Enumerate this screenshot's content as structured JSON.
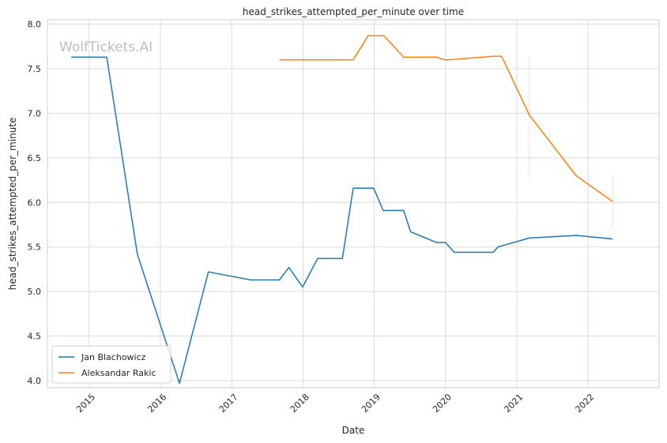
{
  "chart_data": {
    "type": "line",
    "title": "head_strikes_attempted_per_minute over time",
    "xlabel": "Date",
    "ylabel": "head_strikes_attempted_per_minute",
    "watermark": "WolfTickets.AI",
    "xlim": [
      "2014-06-01",
      "2022-12-31"
    ],
    "ylim": [
      3.92,
      8.05
    ],
    "x_ticks": [
      "2015",
      "2016",
      "2017",
      "2018",
      "2019",
      "2020",
      "2021",
      "2022"
    ],
    "y_ticks": [
      "4.0",
      "4.5",
      "5.0",
      "5.5",
      "6.0",
      "6.5",
      "7.0",
      "7.5",
      "8.0"
    ],
    "grid": true,
    "legend_position": "lower-left",
    "series": [
      {
        "name": "Jan Blachowicz",
        "color": "#1f77b4",
        "points": [
          [
            "2014-10-01",
            7.63
          ],
          [
            "2015-04-01",
            7.63
          ],
          [
            "2015-09-05",
            5.42
          ],
          [
            "2016-04-08",
            3.97
          ],
          [
            "2016-09-03",
            5.22
          ],
          [
            "2017-04-08",
            5.13
          ],
          [
            "2017-09-02",
            5.13
          ],
          [
            "2017-10-21",
            5.27
          ],
          [
            "2017-12-30",
            5.05
          ],
          [
            "2018-03-17",
            5.37
          ],
          [
            "2018-07-22",
            5.37
          ],
          [
            "2018-09-15",
            6.16
          ],
          [
            "2018-12-29",
            6.16
          ],
          [
            "2019-02-16",
            5.91
          ],
          [
            "2019-06-01",
            5.91
          ],
          [
            "2019-07-06",
            5.67
          ],
          [
            "2019-11-16",
            5.55
          ],
          [
            "2020-01-01",
            5.55
          ],
          [
            "2020-02-15",
            5.44
          ],
          [
            "2020-09-01",
            5.44
          ],
          [
            "2020-09-27",
            5.5
          ],
          [
            "2021-03-06",
            5.6
          ],
          [
            "2021-11-01",
            5.63
          ],
          [
            "2022-05-07",
            5.59
          ]
        ]
      },
      {
        "name": "Aleksandar Rakic",
        "color": "#ff7f0e",
        "points": [
          [
            "2017-09-02",
            7.6
          ],
          [
            "2018-09-15",
            7.6
          ],
          [
            "2018-12-01",
            7.87
          ],
          [
            "2019-02-20",
            7.87
          ],
          [
            "2019-06-01",
            7.63
          ],
          [
            "2019-11-16",
            7.63
          ],
          [
            "2019-12-29",
            7.6
          ],
          [
            "2020-01-20",
            7.6
          ],
          [
            "2020-09-01",
            7.64
          ],
          [
            "2020-10-15",
            7.64
          ],
          [
            "2021-03-06",
            6.98
          ],
          [
            "2021-11-01",
            6.3
          ],
          [
            "2022-05-07",
            6.01
          ]
        ],
        "error_bars": [
          {
            "x": "2021-03-06",
            "low": 6.28,
            "high": 7.64
          },
          {
            "x": "2022-05-07",
            "low": 5.7,
            "high": 6.31
          }
        ]
      }
    ]
  }
}
